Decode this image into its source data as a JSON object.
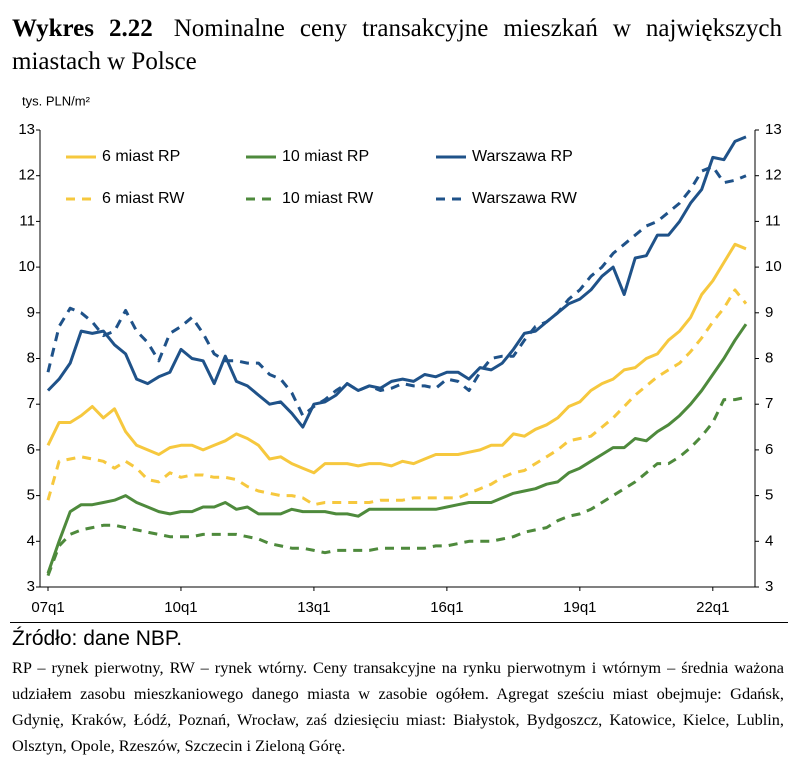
{
  "chart_data": {
    "type": "line",
    "figure_label": "Wykres 2.22",
    "title": "Nominalne ceny transakcyjne mieszkań w największych miastach w Polsce",
    "y_label": "tys. PLN/m²",
    "source": "Źródło: dane NBP.",
    "note": "RP – rynek pierwotny, RW – rynek wtórny. Ceny transakcyjne na rynku pierwotnym i wtórnym – średnia ważona udziałem zasobu mieszkaniowego danego miasta w zasobie ogółem. Agregat sześciu miast obejmuje: Gdańsk, Gdynię, Kraków, Łódź, Poznań, Wrocław, zaś dziesięciu miast: Białystok, Bydgoszcz, Katowice, Kielce, Lublin, Olsztyn, Opole, Rzeszów, Szczecin i Zieloną Górę.",
    "categories": [
      "07q1",
      null,
      null,
      null,
      null,
      null,
      null,
      null,
      null,
      null,
      null,
      null,
      "10q1",
      null,
      null,
      null,
      null,
      null,
      null,
      null,
      null,
      null,
      null,
      null,
      "13q1",
      null,
      null,
      null,
      null,
      null,
      null,
      null,
      null,
      null,
      null,
      null,
      "16q1",
      null,
      null,
      null,
      null,
      null,
      null,
      null,
      null,
      null,
      null,
      null,
      "19q1",
      null,
      null,
      null,
      null,
      null,
      null,
      null,
      null,
      null,
      null,
      null,
      "22q1",
      null,
      null,
      null
    ],
    "ylim": [
      3,
      13
    ],
    "yticks": [
      3,
      4,
      5,
      6,
      7,
      8,
      9,
      10,
      11,
      12,
      13
    ],
    "y2lim": [
      3,
      13
    ],
    "y2ticks": [
      3,
      4,
      5,
      6,
      7,
      8,
      9,
      10,
      11,
      12,
      13
    ],
    "series": [
      {
        "name": "6 miast RP",
        "color": "#f6c83e",
        "dashed": false,
        "values": [
          6.1,
          6.6,
          6.6,
          6.75,
          6.95,
          6.7,
          6.9,
          6.4,
          6.1,
          6.0,
          5.9,
          6.05,
          6.1,
          6.1,
          6.0,
          6.1,
          6.2,
          6.35,
          6.25,
          6.1,
          5.8,
          5.85,
          5.7,
          5.6,
          5.5,
          5.7,
          5.7,
          5.7,
          5.65,
          5.7,
          5.7,
          5.65,
          5.75,
          5.7,
          5.8,
          5.9,
          5.9,
          5.9,
          5.95,
          6.0,
          6.1,
          6.1,
          6.35,
          6.3,
          6.45,
          6.55,
          6.7,
          6.95,
          7.05,
          7.3,
          7.45,
          7.55,
          7.75,
          7.8,
          8.0,
          8.1,
          8.4,
          8.6,
          8.9,
          9.4,
          9.7,
          10.1,
          10.5,
          10.4
        ]
      },
      {
        "name": "10 miast RP",
        "color": "#4e8a3c",
        "dashed": false,
        "values": [
          3.3,
          4.0,
          4.65,
          4.8,
          4.8,
          4.85,
          4.9,
          5.0,
          4.85,
          4.75,
          4.65,
          4.6,
          4.65,
          4.65,
          4.75,
          4.75,
          4.85,
          4.7,
          4.75,
          4.6,
          4.6,
          4.6,
          4.7,
          4.65,
          4.65,
          4.65,
          4.6,
          4.6,
          4.55,
          4.7,
          4.7,
          4.7,
          4.7,
          4.7,
          4.7,
          4.7,
          4.75,
          4.8,
          4.85,
          4.85,
          4.85,
          4.95,
          5.05,
          5.1,
          5.15,
          5.25,
          5.3,
          5.5,
          5.6,
          5.75,
          5.9,
          6.05,
          6.05,
          6.25,
          6.2,
          6.4,
          6.55,
          6.75,
          7.0,
          7.3,
          7.65,
          8.0,
          8.4,
          8.75
        ]
      },
      {
        "name": "Warszawa RP",
        "color": "#1f5289",
        "dashed": false,
        "values": [
          7.3,
          7.55,
          7.9,
          8.6,
          8.55,
          8.6,
          8.3,
          8.1,
          7.55,
          7.45,
          7.6,
          7.7,
          8.2,
          8.0,
          7.95,
          7.45,
          8.05,
          7.5,
          7.4,
          7.2,
          7.0,
          7.05,
          6.8,
          6.5,
          7.0,
          7.05,
          7.2,
          7.45,
          7.3,
          7.4,
          7.35,
          7.5,
          7.55,
          7.5,
          7.65,
          7.6,
          7.7,
          7.7,
          7.55,
          7.8,
          7.75,
          7.9,
          8.2,
          8.55,
          8.6,
          8.8,
          9.0,
          9.2,
          9.3,
          9.5,
          9.8,
          10.0,
          9.4,
          10.2,
          10.25,
          10.7,
          10.7,
          11.0,
          11.4,
          11.7,
          12.4,
          12.35,
          12.75,
          12.85
        ]
      },
      {
        "name": "6 miast RW",
        "color": "#f6c83e",
        "dashed": true,
        "values": [
          4.9,
          5.75,
          5.8,
          5.85,
          5.8,
          5.75,
          5.6,
          5.75,
          5.6,
          5.35,
          5.3,
          5.5,
          5.4,
          5.45,
          5.45,
          5.4,
          5.4,
          5.35,
          5.2,
          5.1,
          5.05,
          5.0,
          5.0,
          4.95,
          4.8,
          4.85,
          4.85,
          4.85,
          4.85,
          4.85,
          4.9,
          4.9,
          4.9,
          4.95,
          4.95,
          4.95,
          4.95,
          4.95,
          5.05,
          5.15,
          5.25,
          5.4,
          5.5,
          5.55,
          5.7,
          5.85,
          6.0,
          6.2,
          6.25,
          6.3,
          6.5,
          6.7,
          6.95,
          7.2,
          7.4,
          7.6,
          7.75,
          7.9,
          8.15,
          8.45,
          8.8,
          9.1,
          9.5,
          9.2
        ]
      },
      {
        "name": "10 miast RW",
        "color": "#4e8a3c",
        "dashed": true,
        "values": [
          3.25,
          3.9,
          4.15,
          4.25,
          4.3,
          4.35,
          4.35,
          4.3,
          4.25,
          4.2,
          4.15,
          4.1,
          4.1,
          4.1,
          4.15,
          4.15,
          4.15,
          4.15,
          4.1,
          4.05,
          3.95,
          3.9,
          3.85,
          3.85,
          3.8,
          3.75,
          3.8,
          3.8,
          3.8,
          3.8,
          3.85,
          3.85,
          3.85,
          3.85,
          3.85,
          3.9,
          3.9,
          3.95,
          4.0,
          4.0,
          4.0,
          4.05,
          4.1,
          4.2,
          4.25,
          4.3,
          4.45,
          4.55,
          4.6,
          4.7,
          4.85,
          5.0,
          5.15,
          5.3,
          5.5,
          5.7,
          5.7,
          5.85,
          6.05,
          6.3,
          6.6,
          7.1,
          7.1,
          7.15
        ]
      },
      {
        "name": "Warszawa RW",
        "color": "#1f5289",
        "dashed": true,
        "values": [
          7.7,
          8.7,
          9.1,
          9.0,
          8.8,
          8.5,
          8.6,
          9.05,
          8.6,
          8.35,
          7.95,
          8.55,
          8.7,
          8.9,
          8.55,
          8.1,
          7.95,
          7.95,
          7.9,
          7.9,
          7.65,
          7.55,
          7.25,
          6.75,
          6.95,
          7.1,
          7.3,
          7.45,
          7.3,
          7.4,
          7.3,
          7.35,
          7.45,
          7.4,
          7.4,
          7.35,
          7.55,
          7.5,
          7.3,
          7.7,
          8.0,
          8.05,
          8.05,
          8.4,
          8.7,
          8.8,
          9.0,
          9.3,
          9.5,
          9.8,
          10.0,
          10.3,
          10.5,
          10.7,
          10.9,
          11.0,
          11.2,
          11.4,
          11.7,
          12.1,
          12.2,
          11.85,
          11.9,
          12.0
        ]
      }
    ]
  }
}
